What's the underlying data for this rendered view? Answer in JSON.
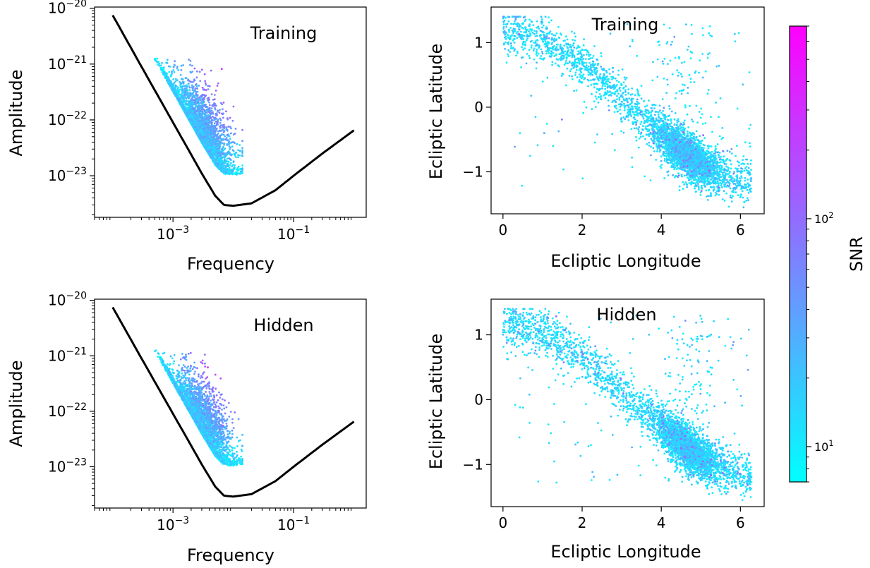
{
  "chart_data": [
    {
      "panel": "amplitude-training",
      "type": "scatter",
      "annotation": "Training",
      "xlabel": "Frequency",
      "ylabel": "Amplitude",
      "xscale": "log",
      "yscale": "log",
      "xlim": [
        5e-05,
        1.6
      ],
      "ylim": [
        1.8e-24,
        1.05e-20
      ],
      "xticks": [
        {
          "value": 0.001,
          "mantissa": "10",
          "exponent": "−3"
        },
        {
          "value": 0.1,
          "mantissa": "10",
          "exponent": "−1"
        }
      ],
      "yticks": [
        {
          "value": 1e-20,
          "mantissa": "10",
          "exponent": "−20"
        },
        {
          "value": 1e-21,
          "mantissa": "10",
          "exponent": "−21"
        },
        {
          "value": 1e-22,
          "mantissa": "10",
          "exponent": "−22"
        },
        {
          "value": 1e-23,
          "mantissa": "10",
          "exponent": "−23"
        }
      ],
      "curve": {
        "color": "#000000",
        "x": [
          0.0001,
          0.0003,
          0.001,
          0.002,
          0.003,
          0.005,
          0.007,
          0.01,
          0.02,
          0.05,
          0.1,
          0.3,
          1.0
        ],
        "y": [
          7.5e-21,
          9e-22,
          9e-23,
          2.4e-23,
          1.1e-23,
          4.4e-24,
          3e-24,
          2.9e-24,
          3.2e-24,
          5.5e-24,
          1e-23,
          2.5e-23,
          6.5e-23
        ]
      },
      "points": {
        "count": 4200,
        "seed": 11,
        "logf_range": [
          -3.3,
          -1.85
        ],
        "logA_range": [
          -23.3,
          -20.9
        ],
        "color_by": "SNR"
      },
      "grid": false
    },
    {
      "panel": "sky-training",
      "type": "scatter",
      "annotation": "Training",
      "xlabel": "Ecliptic Longitude",
      "ylabel": "Ecliptic Latitude",
      "xlim": [
        -0.3,
        6.6
      ],
      "ylim": [
        -1.65,
        1.55
      ],
      "xticks": [
        0,
        2,
        4,
        6
      ],
      "yticks": [
        1,
        0,
        -1
      ],
      "ytick_labels": [
        "1",
        "0",
        "−1"
      ],
      "points": {
        "count": 4200,
        "seed": 23,
        "lon_range": [
          0.0,
          6.28
        ],
        "lat_range": [
          -1.55,
          1.4
        ],
        "color_by": "SNR"
      },
      "grid": false
    },
    {
      "panel": "amplitude-hidden",
      "type": "scatter",
      "annotation": "Hidden",
      "xlabel": "Frequency",
      "ylabel": "Amplitude",
      "xscale": "log",
      "yscale": "log",
      "xlim": [
        5e-05,
        1.6
      ],
      "ylim": [
        1.8e-24,
        1.05e-20
      ],
      "xticks": [
        {
          "value": 0.001,
          "mantissa": "10",
          "exponent": "−3"
        },
        {
          "value": 0.1,
          "mantissa": "10",
          "exponent": "−1"
        }
      ],
      "yticks": [
        {
          "value": 1e-20,
          "mantissa": "10",
          "exponent": "−20"
        },
        {
          "value": 1e-21,
          "mantissa": "10",
          "exponent": "−21"
        },
        {
          "value": 1e-22,
          "mantissa": "10",
          "exponent": "−22"
        },
        {
          "value": 1e-23,
          "mantissa": "10",
          "exponent": "−23"
        }
      ],
      "curve": {
        "color": "#000000",
        "x": [
          0.0001,
          0.0003,
          0.001,
          0.002,
          0.003,
          0.005,
          0.007,
          0.01,
          0.02,
          0.05,
          0.1,
          0.3,
          1.0
        ],
        "y": [
          7.5e-21,
          9e-22,
          9e-23,
          2.4e-23,
          1.1e-23,
          4.4e-24,
          3e-24,
          2.9e-24,
          3.2e-24,
          5.5e-24,
          1e-23,
          2.5e-23,
          6.5e-23
        ]
      },
      "points": {
        "count": 4200,
        "seed": 37,
        "logf_range": [
          -3.3,
          -1.85
        ],
        "logA_range": [
          -23.3,
          -20.9
        ],
        "color_by": "SNR"
      },
      "grid": false
    },
    {
      "panel": "sky-hidden",
      "type": "scatter",
      "annotation": "Hidden",
      "xlabel": "Ecliptic Longitude",
      "ylabel": "Ecliptic Latitude",
      "xlim": [
        -0.3,
        6.6
      ],
      "ylim": [
        -1.65,
        1.55
      ],
      "xticks": [
        0,
        2,
        4,
        6
      ],
      "yticks": [
        1,
        0,
        -1
      ],
      "ytick_labels": [
        "1",
        "0",
        "−1"
      ],
      "points": {
        "count": 4200,
        "seed": 53,
        "lon_range": [
          0.0,
          6.28
        ],
        "lat_range": [
          -1.55,
          1.4
        ],
        "color_by": "SNR"
      },
      "grid": false
    }
  ],
  "colorbar": {
    "label": "SNR",
    "scale": "log",
    "range": [
      7,
      700
    ],
    "colormap": "cool",
    "color_low": "#00ffff",
    "color_high": "#ff00ff",
    "ticks": [
      {
        "value": 100,
        "mantissa": "10",
        "exponent": "2"
      },
      {
        "value": 10,
        "mantissa": "10",
        "exponent": "1"
      }
    ]
  }
}
